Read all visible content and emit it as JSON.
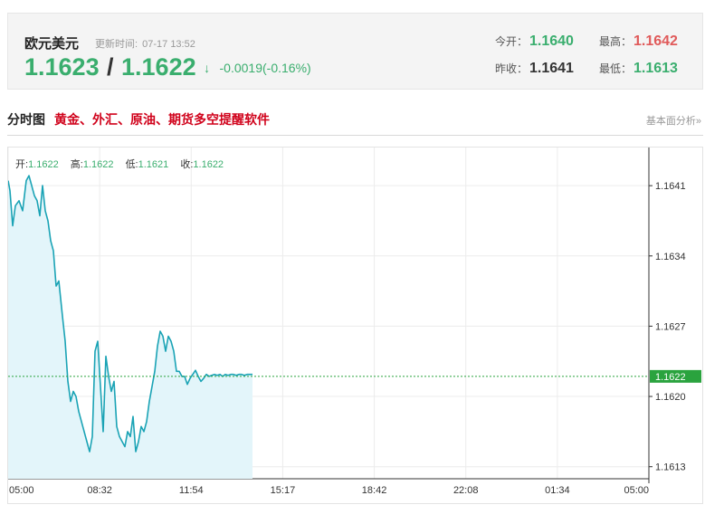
{
  "quote": {
    "name": "欧元美元",
    "update_label": "更新时间:",
    "update_time": "07-17 13:52",
    "bid": "1.1623",
    "separator": "/",
    "ask": "1.1622",
    "direction_arrow": "↓",
    "change": "-0.0019(-0.16%)",
    "open_label": "今开：",
    "open": "1.1640",
    "high_label": "最高：",
    "high": "1.1642",
    "prev_close_label": "昨收：",
    "prev_close": "1.1641",
    "low_label": "最低：",
    "low": "1.1613"
  },
  "section": {
    "title": "分时图",
    "promo": "黄金、外汇、原油、期货多空提醒软件",
    "fundamental_link": "基本面分析»"
  },
  "ohlc": {
    "open_label": "开:",
    "open": "1.1622",
    "high_label": "高:",
    "high": "1.1622",
    "low_label": "低:",
    "low": "1.1621",
    "close_label": "收:",
    "close": "1.1622"
  },
  "colors": {
    "up_green": "#3aae6e",
    "high_red": "#e05a5a",
    "line": "#1aa3b5",
    "area": "#e3f5fa",
    "current_badge": "#2aa33e",
    "promo_red": "#d0021b"
  },
  "chart_data": {
    "type": "area",
    "x_tick_labels": [
      "05:00",
      "08:32",
      "11:54",
      "15:17",
      "18:42",
      "22:08",
      "01:34",
      "05:00"
    ],
    "y_ticks": [
      1.1641,
      1.1634,
      1.1627,
      1.162,
      1.1613
    ],
    "y_tick_labels": [
      "1.1641",
      "1.1634",
      "1.1627",
      "1.1620",
      "1.1613"
    ],
    "ylim": [
      1.16118,
      1.16448
    ],
    "current_price": 1.1622,
    "current_price_label": "1.1622",
    "grid": true,
    "series": [
      {
        "x": [
          0,
          2,
          5,
          8,
          12,
          16,
          20,
          23,
          26,
          29,
          32,
          35,
          38,
          41,
          44,
          47,
          50,
          53,
          56,
          60,
          63,
          66,
          69,
          72,
          75,
          78,
          81,
          84,
          87,
          90,
          93,
          96,
          99,
          102,
          105,
          108,
          111,
          114,
          117,
          120,
          123,
          126,
          129,
          132,
          135,
          138,
          141,
          144,
          147,
          150,
          153,
          156,
          159,
          162,
          165,
          168,
          171,
          174,
          177,
          180,
          183,
          186,
          189,
          192,
          195,
          198,
          201,
          204,
          207,
          210,
          213,
          216,
          219,
          222,
          225,
          228,
          231,
          234,
          237,
          240,
          243,
          246,
          249,
          252,
          255,
          258,
          261,
          264,
          267,
          270
        ],
        "y": [
          1.16415,
          1.16405,
          1.1637,
          1.1639,
          1.16395,
          1.16385,
          1.16415,
          1.1642,
          1.1641,
          1.164,
          1.16395,
          1.1638,
          1.1641,
          1.16385,
          1.16375,
          1.16355,
          1.16345,
          1.1631,
          1.16315,
          1.1628,
          1.16255,
          1.16215,
          1.16195,
          1.16205,
          1.162,
          1.16185,
          1.16175,
          1.16165,
          1.16155,
          1.16145,
          1.1616,
          1.16245,
          1.16255,
          1.1621,
          1.16165,
          1.1624,
          1.1622,
          1.16205,
          1.16215,
          1.1617,
          1.1616,
          1.16155,
          1.1615,
          1.16165,
          1.1616,
          1.1618,
          1.16145,
          1.16155,
          1.1617,
          1.16165,
          1.16175,
          1.16195,
          1.1621,
          1.16225,
          1.1625,
          1.16265,
          1.1626,
          1.16245,
          1.1626,
          1.16255,
          1.16245,
          1.16225,
          1.16225,
          1.1622,
          1.1622,
          1.16212,
          1.16218,
          1.16222,
          1.16226,
          1.1622,
          1.16215,
          1.16218,
          1.16222,
          1.1622,
          1.16221,
          1.16222,
          1.16221,
          1.16222,
          1.1622,
          1.16222,
          1.16221,
          1.16222,
          1.16222,
          1.16221,
          1.16222,
          1.16222,
          1.16221,
          1.16222,
          1.16222,
          1.16222
        ]
      }
    ],
    "x_range": [
      0,
      708
    ]
  }
}
